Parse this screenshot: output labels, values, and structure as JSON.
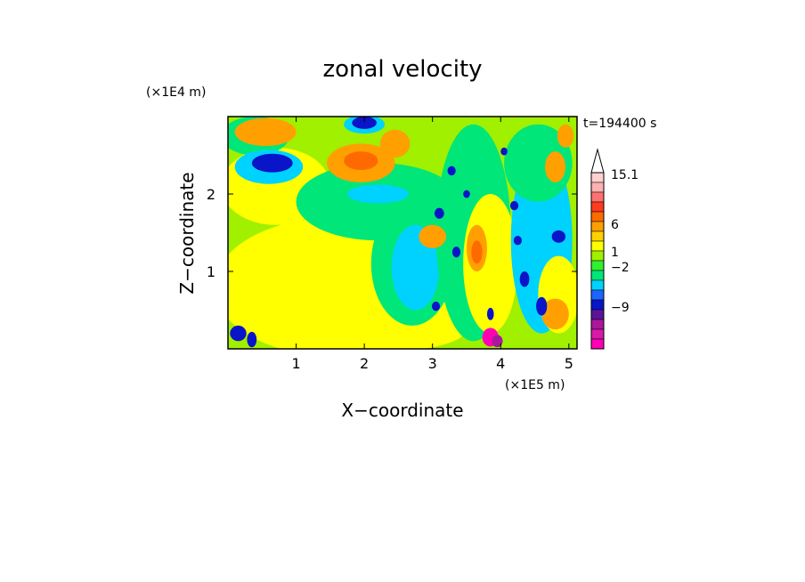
{
  "chart_data": {
    "type": "heatmap",
    "title": "zonal velocity",
    "time_label": "t=194400 s",
    "xlabel": "X−coordinate",
    "ylabel": "Z−coordinate",
    "x_scale_label": "(×1E5 m)",
    "y_scale_label": "(×1E4 m)",
    "xlim": [
      0,
      5.12
    ],
    "ylim": [
      0,
      3.0
    ],
    "x_ticks": [
      1,
      2,
      3,
      4,
      5
    ],
    "y_ticks": [
      1,
      2
    ],
    "x_tick_labels": [
      "1",
      "2",
      "3",
      "4",
      "5"
    ],
    "y_tick_labels": [
      "1",
      "2"
    ],
    "colorbar": {
      "colors": [
        "#ff00b4",
        "#d81aa8",
        "#a8189c",
        "#5b1498",
        "#0a14c8",
        "#1e64ff",
        "#00d2ff",
        "#00e678",
        "#30f030",
        "#a0f000",
        "#ffff00",
        "#ffd000",
        "#ffa000",
        "#ff6a00",
        "#ff3a20",
        "#ff7070",
        "#ffb0b0",
        "#ffd0d0"
      ],
      "label_texts": [
        "15.1",
        "6",
        "1",
        "−2",
        "−9"
      ],
      "extend_top": true
    },
    "field_colors": {
      "deep_blue": "#0a14c8",
      "light_blue": "#00d2ff",
      "green": "#00e678",
      "light_green": "#30f030",
      "yellow": "#ffff00",
      "gold": "#ffd000",
      "orange": "#ffa000",
      "dark_orange": "#ff6a00",
      "red": "#ff3a20",
      "magenta": "#ff00b4",
      "purple": "#a8189c"
    },
    "features": [
      {
        "kind": "blob",
        "color": "yellow",
        "x": 1.6,
        "z": 0.8,
        "rx": 1.8,
        "rz": 0.9
      },
      {
        "kind": "blob",
        "color": "yellow",
        "x": 0.7,
        "z": 2.1,
        "rx": 0.8,
        "rz": 0.5
      },
      {
        "kind": "blob",
        "color": "yellow",
        "x": 2.1,
        "z": 0.25,
        "rx": 1.4,
        "rz": 0.3
      },
      {
        "kind": "blob",
        "color": "green",
        "x": 0.4,
        "z": 2.75,
        "rx": 0.5,
        "rz": 0.25
      },
      {
        "kind": "blob",
        "color": "green",
        "x": 2.2,
        "z": 1.9,
        "rx": 1.2,
        "rz": 0.5
      },
      {
        "kind": "blob",
        "color": "green",
        "x": 2.7,
        "z": 1.1,
        "rx": 0.6,
        "rz": 0.8
      },
      {
        "kind": "blob",
        "color": "light_blue",
        "x": 2.75,
        "z": 1.05,
        "rx": 0.35,
        "rz": 0.55
      },
      {
        "kind": "blob",
        "color": "light_blue",
        "x": 2.2,
        "z": 2.0,
        "rx": 0.45,
        "rz": 0.12
      },
      {
        "kind": "blob",
        "color": "green",
        "x": 3.6,
        "z": 1.5,
        "rx": 0.55,
        "rz": 1.4
      },
      {
        "kind": "blob",
        "color": "yellow",
        "x": 3.85,
        "z": 1.1,
        "rx": 0.4,
        "rz": 0.9
      },
      {
        "kind": "blob",
        "color": "light_blue",
        "x": 4.6,
        "z": 1.4,
        "rx": 0.45,
        "rz": 1.2
      },
      {
        "kind": "blob",
        "color": "green",
        "x": 4.55,
        "z": 2.4,
        "rx": 0.5,
        "rz": 0.5
      },
      {
        "kind": "blob",
        "color": "yellow",
        "x": 4.85,
        "z": 0.7,
        "rx": 0.3,
        "rz": 0.5
      },
      {
        "kind": "blob",
        "color": "orange",
        "x": 0.55,
        "z": 2.8,
        "rx": 0.45,
        "rz": 0.18
      },
      {
        "kind": "blob",
        "color": "orange",
        "x": 1.95,
        "z": 2.4,
        "rx": 0.5,
        "rz": 0.25
      },
      {
        "kind": "blob",
        "color": "dark_orange",
        "x": 1.95,
        "z": 2.43,
        "rx": 0.25,
        "rz": 0.12
      },
      {
        "kind": "blob",
        "color": "orange",
        "x": 2.45,
        "z": 2.65,
        "rx": 0.22,
        "rz": 0.18
      },
      {
        "kind": "blob",
        "color": "orange",
        "x": 3.0,
        "z": 1.45,
        "rx": 0.2,
        "rz": 0.15
      },
      {
        "kind": "blob",
        "color": "orange",
        "x": 3.65,
        "z": 1.3,
        "rx": 0.15,
        "rz": 0.3
      },
      {
        "kind": "blob",
        "color": "dark_orange",
        "x": 3.65,
        "z": 1.25,
        "rx": 0.08,
        "rz": 0.15
      },
      {
        "kind": "blob",
        "color": "orange",
        "x": 4.8,
        "z": 0.45,
        "rx": 0.2,
        "rz": 0.2
      },
      {
        "kind": "blob",
        "color": "orange",
        "x": 4.8,
        "z": 2.35,
        "rx": 0.15,
        "rz": 0.2
      },
      {
        "kind": "blob",
        "color": "orange",
        "x": 4.95,
        "z": 2.75,
        "rx": 0.12,
        "rz": 0.15
      },
      {
        "kind": "blob",
        "color": "light_blue",
        "x": 0.6,
        "z": 2.35,
        "rx": 0.5,
        "rz": 0.22
      },
      {
        "kind": "blob",
        "color": "deep_blue",
        "x": 0.65,
        "z": 2.4,
        "rx": 0.3,
        "rz": 0.12
      },
      {
        "kind": "blob",
        "color": "light_blue",
        "x": 2.0,
        "z": 2.9,
        "rx": 0.3,
        "rz": 0.12
      },
      {
        "kind": "blob",
        "color": "deep_blue",
        "x": 2.0,
        "z": 2.92,
        "rx": 0.18,
        "rz": 0.08
      },
      {
        "kind": "blob",
        "color": "deep_blue",
        "x": 3.05,
        "z": 0.55,
        "rx": 0.06,
        "rz": 0.06
      },
      {
        "kind": "blob",
        "color": "deep_blue",
        "x": 3.35,
        "z": 1.25,
        "rx": 0.06,
        "rz": 0.07
      },
      {
        "kind": "blob",
        "color": "deep_blue",
        "x": 3.1,
        "z": 1.75,
        "rx": 0.07,
        "rz": 0.07
      },
      {
        "kind": "blob",
        "color": "deep_blue",
        "x": 3.28,
        "z": 2.3,
        "rx": 0.06,
        "rz": 0.06
      },
      {
        "kind": "blob",
        "color": "deep_blue",
        "x": 3.5,
        "z": 2.0,
        "rx": 0.05,
        "rz": 0.05
      },
      {
        "kind": "blob",
        "color": "deep_blue",
        "x": 4.25,
        "z": 1.4,
        "rx": 0.06,
        "rz": 0.06
      },
      {
        "kind": "blob",
        "color": "deep_blue",
        "x": 4.2,
        "z": 1.85,
        "rx": 0.06,
        "rz": 0.06
      },
      {
        "kind": "blob",
        "color": "deep_blue",
        "x": 4.05,
        "z": 2.55,
        "rx": 0.05,
        "rz": 0.05
      },
      {
        "kind": "blob",
        "color": "deep_blue",
        "x": 4.35,
        "z": 0.9,
        "rx": 0.07,
        "rz": 0.1
      },
      {
        "kind": "blob",
        "color": "deep_blue",
        "x": 4.6,
        "z": 0.55,
        "rx": 0.08,
        "rz": 0.12
      },
      {
        "kind": "blob",
        "color": "deep_blue",
        "x": 4.85,
        "z": 1.45,
        "rx": 0.1,
        "rz": 0.08
      },
      {
        "kind": "blob",
        "color": "deep_blue",
        "x": 3.85,
        "z": 0.45,
        "rx": 0.05,
        "rz": 0.08
      },
      {
        "kind": "blob",
        "color": "deep_blue",
        "x": 0.15,
        "z": 0.2,
        "rx": 0.12,
        "rz": 0.1
      },
      {
        "kind": "blob",
        "color": "deep_blue",
        "x": 0.35,
        "z": 0.12,
        "rx": 0.07,
        "rz": 0.1
      },
      {
        "kind": "blob",
        "color": "magenta",
        "x": 3.85,
        "z": 0.15,
        "rx": 0.12,
        "rz": 0.12
      },
      {
        "kind": "blob",
        "color": "purple",
        "x": 3.95,
        "z": 0.1,
        "rx": 0.08,
        "rz": 0.08
      }
    ]
  }
}
